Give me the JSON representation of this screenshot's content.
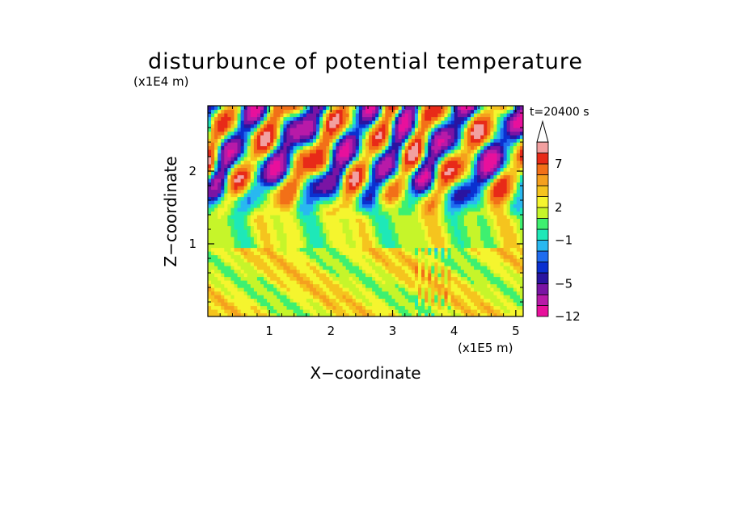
{
  "chart_data": {
    "type": "heatmap",
    "title": "disturbunce of potential temperature",
    "time_label": "t=20400 s",
    "xlabel": "X−coordinate",
    "ylabel": "Z−coordinate",
    "x_unit": "(x1E5 m)",
    "y_unit": "(x1E4 m)",
    "xlim": [
      0.0,
      5.12
    ],
    "ylim": [
      0.0,
      2.9
    ],
    "x_ticks": [
      "1",
      "2",
      "3",
      "4",
      "5"
    ],
    "x_tick_values": [
      1,
      2,
      3,
      4,
      5
    ],
    "y_ticks": [
      "1",
      "2"
    ],
    "y_tick_values": [
      1,
      2
    ],
    "colorbar": {
      "labels": [
        "7",
        "2",
        "−1",
        "−5",
        "−12"
      ],
      "label_levels": [
        7,
        2,
        -1,
        -5,
        -12
      ],
      "levels": [
        -12,
        -9,
        -7,
        -5,
        -4,
        -3,
        -2,
        -1,
        0,
        1,
        2,
        3,
        4,
        5,
        7,
        9,
        12
      ],
      "colors": [
        "#e8109c",
        "#b81aa8",
        "#7a14a4",
        "#2a14a0",
        "#0a30d0",
        "#1f6cf0",
        "#29b8f0",
        "#1ee8b8",
        "#3ef070",
        "#c6f52a",
        "#f5f52e",
        "#f5c41e",
        "#f5a01e",
        "#f27018",
        "#e82a18",
        "#f2a0a0",
        "#fbd7d7"
      ],
      "extend": "max"
    },
    "bands": [
      {
        "z_range": [
          0.0,
          0.9
        ],
        "typical": "yellow/orange, weak positive"
      },
      {
        "z_range": [
          0.9,
          1.6
        ],
        "typical": "yellow/green, near zero"
      },
      {
        "z_range": [
          1.6,
          2.9
        ],
        "typical": "alternating red/orange and blue/purple waves"
      }
    ]
  }
}
